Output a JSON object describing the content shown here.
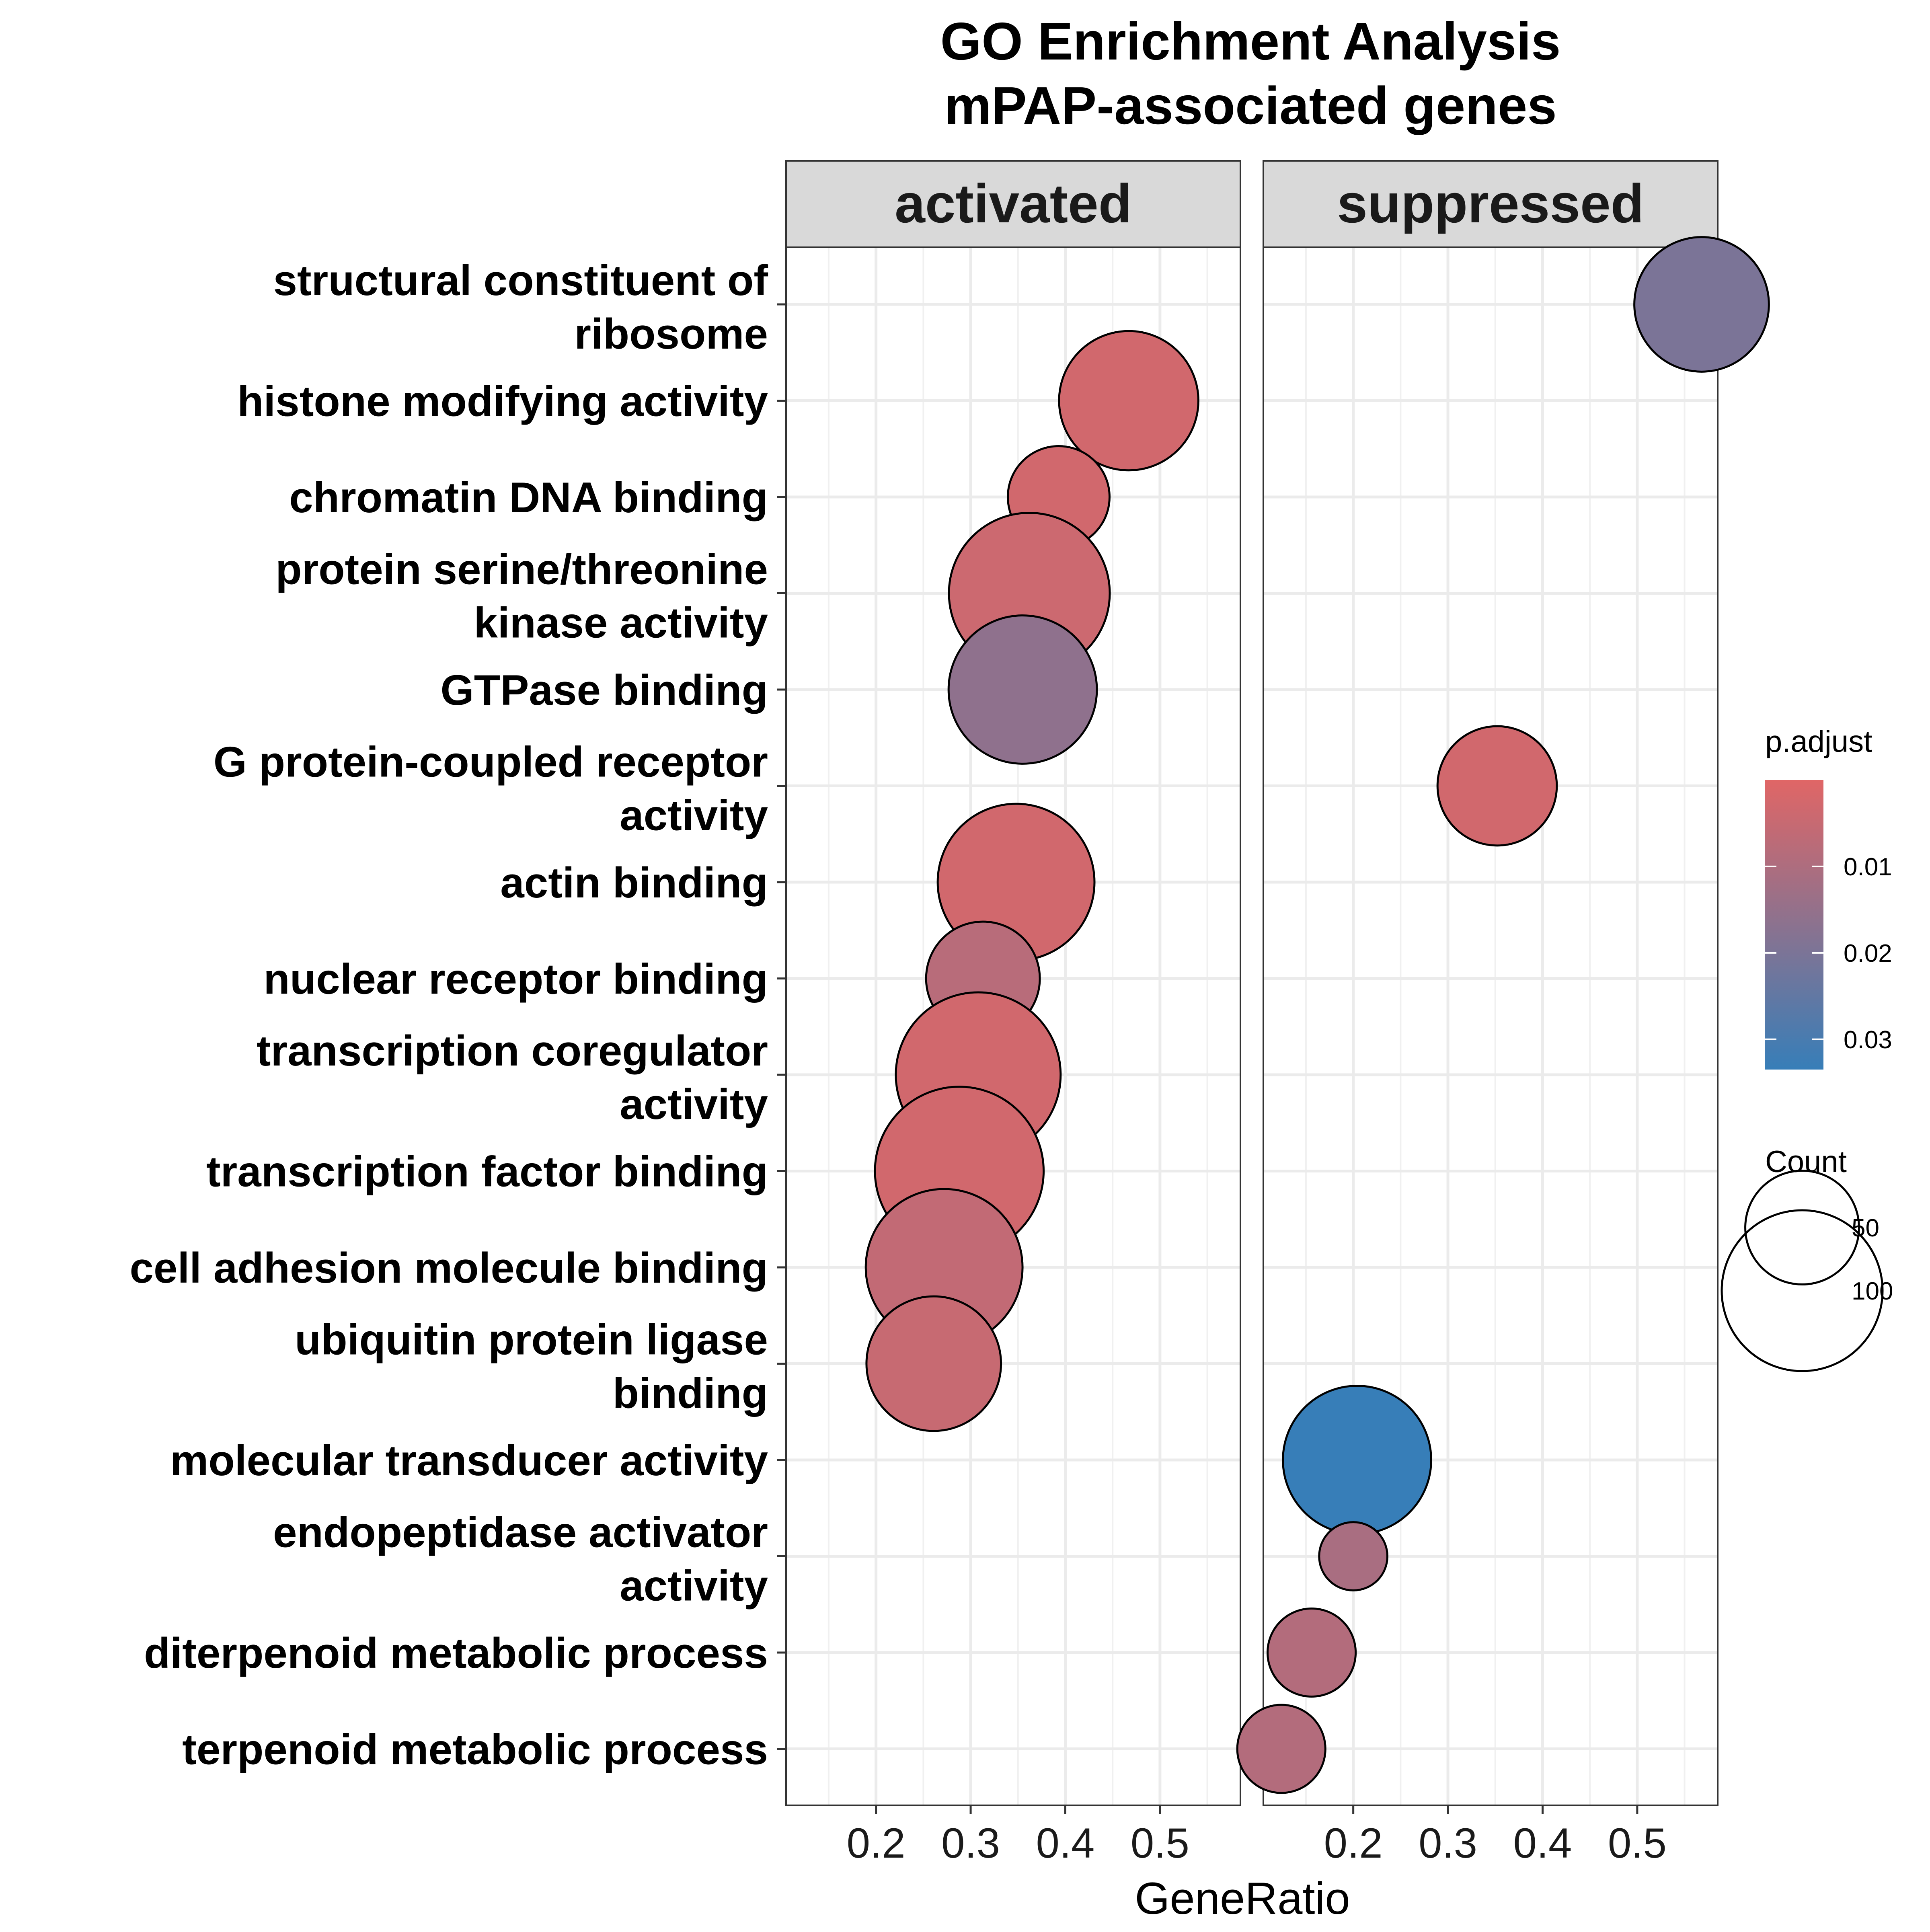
{
  "chart_data": {
    "type": "scatter",
    "title_line1": "GO Enrichment Analysis",
    "title_line2": "mPAP-associated genes",
    "xlabel": "GeneRatio",
    "ylabel": "",
    "xlim": [
      0.105,
      0.585
    ],
    "x_ticks": [
      0.2,
      0.3,
      0.4,
      0.5
    ],
    "x_tick_labels": [
      "0.2",
      "0.3",
      "0.4",
      "0.5"
    ],
    "grid": true,
    "facets": [
      "activated",
      "suppressed"
    ],
    "terms": [
      {
        "line1": "structural constituent of",
        "line2": "ribosome"
      },
      {
        "line1": "histone modifying activity"
      },
      {
        "line1": "chromatin DNA binding"
      },
      {
        "line1": "protein serine/threonine",
        "line2": "kinase activity"
      },
      {
        "line1": "GTPase binding"
      },
      {
        "line1": "G protein-coupled receptor",
        "line2": "activity"
      },
      {
        "line1": "actin binding"
      },
      {
        "line1": "nuclear receptor binding"
      },
      {
        "line1": "transcription coregulator",
        "line2": "activity"
      },
      {
        "line1": "transcription factor binding"
      },
      {
        "line1": "cell adhesion molecule binding"
      },
      {
        "line1": "ubiquitin protein ligase",
        "line2": "binding"
      },
      {
        "line1": "molecular transducer activity"
      },
      {
        "line1": "endopeptidase activator",
        "line2": "activity"
      },
      {
        "line1": "diterpenoid metabolic process"
      },
      {
        "line1": "terpenoid metabolic process"
      }
    ],
    "points": [
      {
        "facet": 0,
        "term": 1,
        "gene_ratio": 0.467,
        "count": 75,
        "p_adjust": 0.003
      },
      {
        "facet": 0,
        "term": 2,
        "gene_ratio": 0.393,
        "count": 40,
        "p_adjust": 0.003
      },
      {
        "facet": 0,
        "term": 3,
        "gene_ratio": 0.362,
        "count": 100,
        "p_adjust": 0.004
      },
      {
        "facet": 0,
        "term": 4,
        "gene_ratio": 0.355,
        "count": 85,
        "p_adjust": 0.016
      },
      {
        "facet": 0,
        "term": 6,
        "gene_ratio": 0.348,
        "count": 95,
        "p_adjust": 0.003
      },
      {
        "facet": 0,
        "term": 7,
        "gene_ratio": 0.313,
        "count": 50,
        "p_adjust": 0.008
      },
      {
        "facet": 0,
        "term": 8,
        "gene_ratio": 0.308,
        "count": 105,
        "p_adjust": 0.003
      },
      {
        "facet": 0,
        "term": 9,
        "gene_ratio": 0.288,
        "count": 110,
        "p_adjust": 0.003
      },
      {
        "facet": 0,
        "term": 10,
        "gene_ratio": 0.272,
        "count": 95,
        "p_adjust": 0.006
      },
      {
        "facet": 0,
        "term": 11,
        "gene_ratio": 0.261,
        "count": 70,
        "p_adjust": 0.005
      },
      {
        "facet": 1,
        "term": 0,
        "gene_ratio": 0.568,
        "count": 70,
        "p_adjust": 0.02
      },
      {
        "facet": 1,
        "term": 5,
        "gene_ratio": 0.352,
        "count": 55,
        "p_adjust": 0.003
      },
      {
        "facet": 1,
        "term": 12,
        "gene_ratio": 0.204,
        "count": 85,
        "p_adjust": 0.034
      },
      {
        "facet": 1,
        "term": 13,
        "gene_ratio": 0.2,
        "count": 18,
        "p_adjust": 0.011
      },
      {
        "facet": 1,
        "term": 14,
        "gene_ratio": 0.156,
        "count": 30,
        "p_adjust": 0.009
      },
      {
        "facet": 1,
        "term": 15,
        "gene_ratio": 0.124,
        "count": 30,
        "p_adjust": 0.009
      }
    ],
    "color_legend": {
      "title": "p.adjust",
      "ticks": [
        0.01,
        0.02,
        0.03
      ],
      "tick_labels": [
        "0.01",
        "0.02",
        "0.03"
      ],
      "range": [
        0.0,
        0.0335
      ],
      "low_color": "#E06666",
      "high_color": "#377EB8"
    },
    "size_legend": {
      "title": "Count",
      "values": [
        50,
        100
      ],
      "labels": [
        "50",
        "100"
      ]
    },
    "legend_position": "right"
  }
}
